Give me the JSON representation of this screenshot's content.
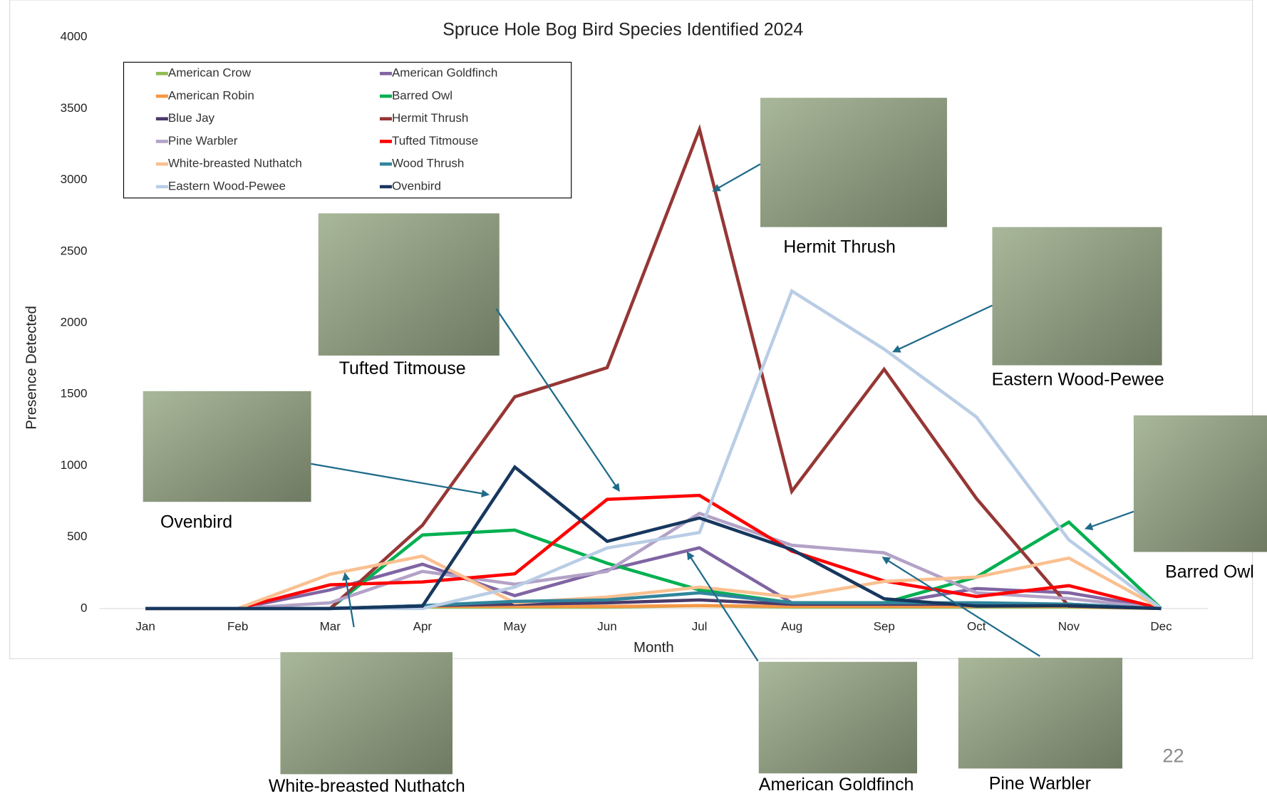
{
  "chart_data": {
    "type": "line",
    "title": "Spruce Hole Bog Bird Species Identified 2024",
    "x_label": "Month",
    "y_label": "Presence Detected",
    "categories": [
      "Jan",
      "Feb",
      "Mar",
      "Apr",
      "May",
      "Jun",
      "Jul",
      "Aug",
      "Sep",
      "Oct",
      "Nov",
      "Dec"
    ],
    "ylim": [
      0,
      4000
    ],
    "yticks": [
      0,
      500,
      1000,
      1500,
      2000,
      2500,
      3000,
      3500,
      4000
    ],
    "grid": false,
    "series": [
      {
        "name": "American Crow",
        "color": "#8fbc4f",
        "values": [
          0,
          0,
          0,
          10,
          10,
          10,
          20,
          10,
          10,
          10,
          10,
          0
        ]
      },
      {
        "name": "American Goldfinch",
        "color": "#8064a2",
        "values": [
          0,
          0,
          130,
          310,
          90,
          270,
          425,
          40,
          30,
          140,
          110,
          0
        ]
      },
      {
        "name": "American Robin",
        "color": "#f79646",
        "values": [
          0,
          0,
          0,
          15,
          15,
          15,
          20,
          15,
          15,
          15,
          15,
          0
        ]
      },
      {
        "name": "Barred Owl",
        "color": "#00b050",
        "values": [
          0,
          0,
          0,
          515,
          549,
          317,
          130,
          40,
          40,
          220,
          605,
          0
        ]
      },
      {
        "name": "Blue Jay",
        "color": "#4b3a6b",
        "values": [
          0,
          0,
          0,
          20,
          30,
          40,
          60,
          30,
          30,
          30,
          30,
          0
        ]
      },
      {
        "name": "Hermit Thrush",
        "color": "#953735",
        "values": [
          0,
          0,
          0,
          583,
          1482,
          1686,
          3355,
          820,
          1675,
          770,
          17,
          0
        ]
      },
      {
        "name": "Pine Warbler",
        "color": "#b3a2c7",
        "values": [
          0,
          0,
          40,
          260,
          170,
          260,
          666,
          443,
          390,
          110,
          70,
          0
        ]
      },
      {
        "name": "Tufted Titmouse",
        "color": "#ff0000",
        "values": [
          0,
          0,
          166,
          186,
          243,
          764,
          792,
          402,
          193,
          84,
          160,
          0
        ]
      },
      {
        "name": "White-breasted Nuthatch",
        "color": "#fac090",
        "values": [
          0,
          0,
          240,
          367,
          40,
          80,
          150,
          80,
          190,
          220,
          353,
          0
        ]
      },
      {
        "name": "Wood Thrush",
        "color": "#31859c",
        "values": [
          0,
          0,
          0,
          20,
          50,
          60,
          110,
          40,
          40,
          40,
          30,
          0
        ]
      },
      {
        "name": "Eastern Wood-Pewee",
        "color": "#b9cde5",
        "values": [
          0,
          0,
          0,
          0,
          150,
          424,
          532,
          2223,
          1816,
          1341,
          481,
          0
        ]
      },
      {
        "name": "Ovenbird",
        "color": "#17375e",
        "values": [
          0,
          0,
          0,
          17,
          990,
          470,
          634,
          413,
          68,
          17,
          20,
          0
        ]
      }
    ]
  },
  "annotations": [
    "Hermit Thrush",
    "Eastern Wood-Pewee",
    "Tufted Titmouse",
    "Ovenbird",
    "Barred Owl",
    "White-breasted Nuthatch",
    "American Goldfinch",
    "Pine Warbler"
  ],
  "page_number": "22"
}
